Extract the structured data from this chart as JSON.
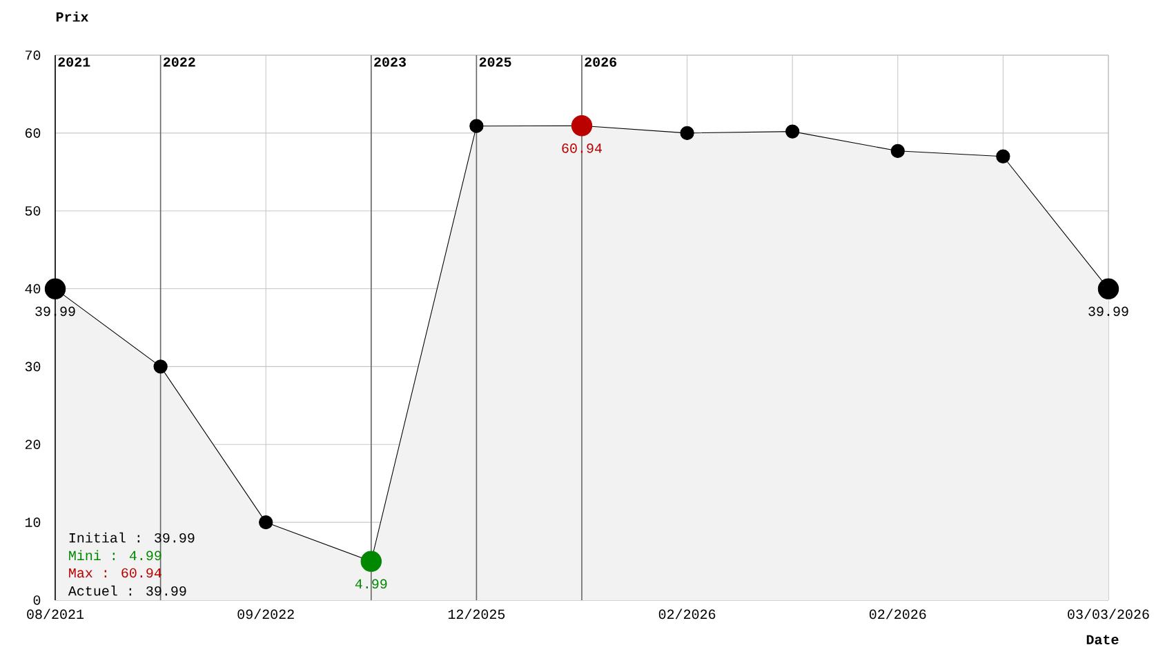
{
  "chart_data": {
    "type": "area",
    "xlabel": "Date",
    "ylabel": "Prix",
    "categories": [
      "08/2021",
      null,
      "09/2022",
      null,
      "12/2025",
      null,
      "02/2026",
      null,
      "02/2026",
      null,
      "03/03/2026"
    ],
    "ylim": [
      0,
      70
    ],
    "yticks": [
      0,
      10,
      20,
      30,
      40,
      50,
      60,
      70
    ],
    "series": [
      {
        "color": "#f2f2f2",
        "values": [
          39.99,
          30,
          10,
          4.99,
          60.9,
          60.94,
          60.0,
          60.2,
          57.7,
          57.0,
          39.99
        ],
        "colors": [
          "#000000",
          "#000000",
          "#000000",
          "#008800",
          "#000000",
          "#bb0000",
          "#000000",
          "#000000",
          "#000000",
          "#000000",
          "#000000"
        ],
        "value_labels": [
          "39.99",
          null,
          null,
          "4.99",
          null,
          "60.94",
          null,
          null,
          null,
          null,
          "39.99"
        ]
      }
    ],
    "annotations": [
      "Initial : 39.99",
      "Mini : 4.99",
      "Max : 60.94",
      "Actuel : 39.99",
      "2021",
      "2022",
      "2023",
      "2025",
      "2026"
    ],
    "grid": true,
    "marker": "circle",
    "line_style": "solid"
  }
}
